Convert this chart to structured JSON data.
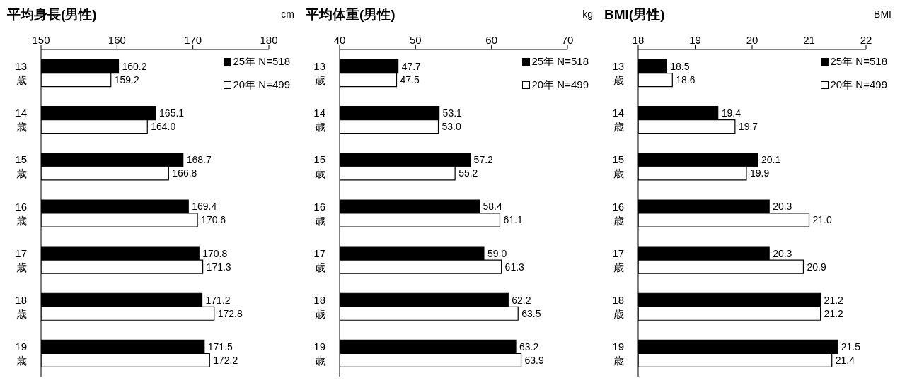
{
  "chart_data": [
    {
      "type": "bar",
      "orientation": "horizontal",
      "title": "平均身長(男性)",
      "xlabel": "cm",
      "categories": [
        "13歳",
        "14歳",
        "15歳",
        "16歳",
        "17歳",
        "18歳",
        "19歳"
      ],
      "series": [
        {
          "name": "25年 N=518",
          "color": "#000000",
          "values": [
            160.2,
            165.1,
            168.7,
            169.4,
            170.8,
            171.2,
            171.5
          ],
          "value_labels": [
            "160.2",
            "165.1",
            "168.7",
            "169.4",
            "170.8",
            "171.2",
            "171.5"
          ]
        },
        {
          "name": "20年 N=499",
          "color": "#ffffff",
          "values": [
            159.2,
            164.0,
            166.8,
            170.6,
            171.3,
            172.8,
            172.2
          ],
          "value_labels": [
            "159.2",
            "164.0",
            "166.8",
            "170.6",
            "171.3",
            "172.8",
            "172.2"
          ]
        }
      ],
      "xlim": [
        150,
        180
      ],
      "xticks": [
        150,
        160,
        170,
        180
      ],
      "legend": "top right",
      "grid": false
    },
    {
      "type": "bar",
      "orientation": "horizontal",
      "title": "平均体重(男性)",
      "xlabel": "kg",
      "categories": [
        "13歳",
        "14歳",
        "15歳",
        "16歳",
        "17歳",
        "18歳",
        "19歳"
      ],
      "series": [
        {
          "name": "25年 N=518",
          "color": "#000000",
          "values": [
            47.7,
            53.1,
            57.2,
            58.4,
            59.0,
            62.2,
            63.2
          ],
          "value_labels": [
            "47.7",
            "53.1",
            "57.2",
            "58.4",
            "59.0",
            "62.2",
            "63.2"
          ]
        },
        {
          "name": "20年 N=499",
          "color": "#ffffff",
          "values": [
            47.5,
            53.0,
            55.2,
            61.1,
            61.3,
            63.5,
            63.9
          ],
          "value_labels": [
            "47.5",
            "53.0",
            "55.2",
            "61.1",
            "61.3",
            "63.5",
            "63.9"
          ]
        }
      ],
      "xlim": [
        40,
        70
      ],
      "xticks": [
        40,
        50,
        60,
        70
      ],
      "legend": "top right",
      "grid": false
    },
    {
      "type": "bar",
      "orientation": "horizontal",
      "title": "BMI(男性)",
      "xlabel": "BMI",
      "categories": [
        "13歳",
        "14歳",
        "15歳",
        "16歳",
        "17歳",
        "18歳",
        "19歳"
      ],
      "series": [
        {
          "name": "25年 N=518",
          "color": "#000000",
          "values": [
            18.5,
            19.4,
            20.1,
            20.3,
            20.3,
            21.2,
            21.5
          ],
          "value_labels": [
            "18.5",
            "19.4",
            "20.1",
            "20.3",
            "20.3",
            "21.2",
            "21.5"
          ]
        },
        {
          "name": "20年 N=499",
          "color": "#ffffff",
          "values": [
            18.6,
            19.7,
            19.9,
            21.0,
            20.9,
            21.2,
            21.4
          ],
          "value_labels": [
            "18.6",
            "19.7",
            "19.9",
            "21.0",
            "20.9",
            "21.2",
            "21.4"
          ]
        }
      ],
      "xlim": [
        18,
        22
      ],
      "xticks": [
        18,
        19,
        20,
        21,
        22
      ],
      "legend": "top right",
      "grid": false
    }
  ]
}
